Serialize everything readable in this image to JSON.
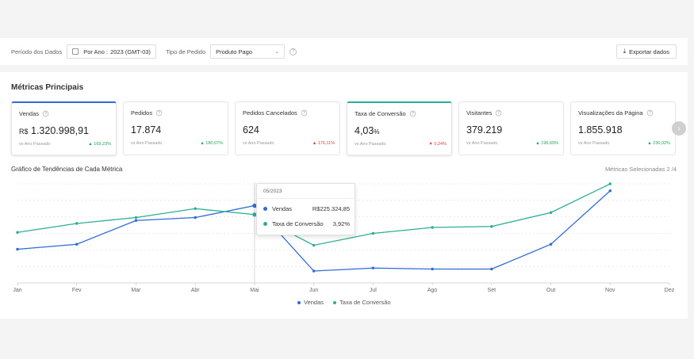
{
  "filters": {
    "period_label": "Período dos Dados",
    "period_prefix": "Por Ano :",
    "period_value": "2023 (GMT-03)",
    "order_type_label": "Tipo de Pedido",
    "order_type_value": "Produto Pago",
    "export_label": "Exportar dados"
  },
  "section_title": "Métricas Principais",
  "cards": [
    {
      "name": "Vendas",
      "prefix": "R$",
      "value": "1.320.998,91",
      "suffix": "",
      "compare": "vs Ano Passado",
      "delta": "169,23%",
      "dir": "up"
    },
    {
      "name": "Pedidos",
      "prefix": "",
      "value": "17.874",
      "suffix": "",
      "compare": "vs Ano Passado",
      "delta": "180,07%",
      "dir": "up"
    },
    {
      "name": "Pedidos Cancelados",
      "prefix": "",
      "value": "624",
      "suffix": "",
      "compare": "vs Ano Passado",
      "delta": "176,11%",
      "dir": "up-red"
    },
    {
      "name": "Taxa de Conversão",
      "prefix": "",
      "value": "4,03",
      "suffix": "%",
      "compare": "vs Ano Passado",
      "delta": "0,24%",
      "dir": "down"
    },
    {
      "name": "Visitantes",
      "prefix": "",
      "value": "379.219",
      "suffix": "",
      "compare": "vs Ano Passado",
      "delta": "196,69%",
      "dir": "up"
    },
    {
      "name": "Visualizações da Página",
      "prefix": "",
      "value": "1.855.918",
      "suffix": "",
      "compare": "vs Ano Passado",
      "delta": "230,02%",
      "dir": "up"
    }
  ],
  "chart_section": {
    "title": "Gráfico de Tendências de Cada Métrica",
    "selected": "Métricas Selecionadas 2 /4"
  },
  "tooltip": {
    "date": "05/2023",
    "rows": [
      {
        "name": "Vendas",
        "value": "R$225.324,85"
      },
      {
        "name": "Taxa de Conversão",
        "value": "3,92%"
      }
    ]
  },
  "colors": {
    "vendas": "#2f6bd6",
    "conversao": "#2cae94"
  },
  "chart_data": {
    "type": "line",
    "categories": [
      "Jan",
      "Fev",
      "Mar",
      "Abr",
      "Mai",
      "Jun",
      "Jul",
      "Ago",
      "Set",
      "Out",
      "Nov",
      "Dez"
    ],
    "series": [
      {
        "name": "Vendas",
        "values": [
          0.34,
          0.39,
          0.63,
          0.66,
          0.78,
          0.12,
          0.15,
          0.14,
          0.14,
          0.39,
          0.93,
          null
        ]
      },
      {
        "name": "Taxa de Conversão",
        "values": [
          0.51,
          0.6,
          0.66,
          0.75,
          0.69,
          0.38,
          0.5,
          0.56,
          0.57,
          0.71,
          1.0,
          null
        ]
      }
    ],
    "note_scale": "normalized 0-1 per series (axis values not printed)",
    "grid": true,
    "legend": "bottom-center"
  }
}
